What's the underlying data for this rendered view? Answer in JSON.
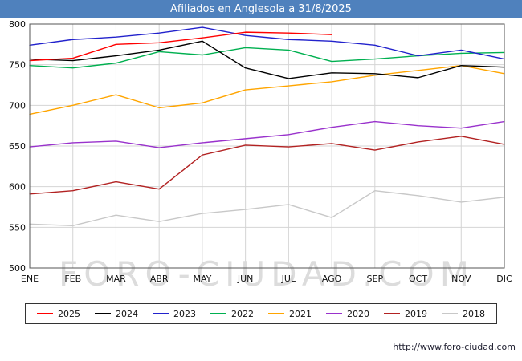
{
  "title_bar": {
    "title": "Afiliados en Anglesola a 31/8/2025",
    "bg_color": "#4f81bd"
  },
  "watermark": "FORO-CIUDAD.COM",
  "footer": {
    "url": "http://www.foro-ciudad.com"
  },
  "chart_data": {
    "type": "line",
    "title": "Afiliados en Anglesola a 31/8/2025",
    "xlabel": "",
    "ylabel": "",
    "ylim": [
      500,
      800
    ],
    "ytick_step": 50,
    "grid": true,
    "legend_position": "bottom",
    "categories": [
      "ENE",
      "FEB",
      "MAR",
      "ABR",
      "MAY",
      "JUN",
      "JUL",
      "AGO",
      "SEP",
      "OCT",
      "NOV",
      "DIC"
    ],
    "series": [
      {
        "name": "2025",
        "color": "#ff0000",
        "values": [
          755,
          758,
          775,
          777,
          783,
          790,
          789,
          787,
          null,
          null,
          null,
          null
        ]
      },
      {
        "name": "2024",
        "color": "#000000",
        "values": [
          757,
          755,
          761,
          768,
          779,
          746,
          733,
          740,
          739,
          734,
          749,
          747
        ]
      },
      {
        "name": "2023",
        "color": "#2222cc",
        "values": [
          774,
          781,
          784,
          789,
          796,
          786,
          781,
          779,
          774,
          761,
          768,
          757
        ]
      },
      {
        "name": "2022",
        "color": "#00b050",
        "values": [
          749,
          746,
          752,
          766,
          762,
          771,
          768,
          754,
          757,
          761,
          764,
          765
        ]
      },
      {
        "name": "2021",
        "color": "#ffa500",
        "values": [
          689,
          700,
          713,
          697,
          703,
          719,
          724,
          729,
          737,
          743,
          749,
          739
        ]
      },
      {
        "name": "2020",
        "color": "#9932cc",
        "values": [
          649,
          654,
          656,
          648,
          654,
          659,
          664,
          673,
          680,
          675,
          672,
          680
        ]
      },
      {
        "name": "2019",
        "color": "#b22222",
        "values": [
          591,
          595,
          606,
          597,
          639,
          651,
          649,
          653,
          645,
          655,
          662,
          652
        ]
      },
      {
        "name": "2018",
        "color": "#c8c8c8",
        "values": [
          554,
          552,
          565,
          557,
          567,
          572,
          578,
          562,
          595,
          589,
          581,
          587
        ]
      }
    ]
  }
}
